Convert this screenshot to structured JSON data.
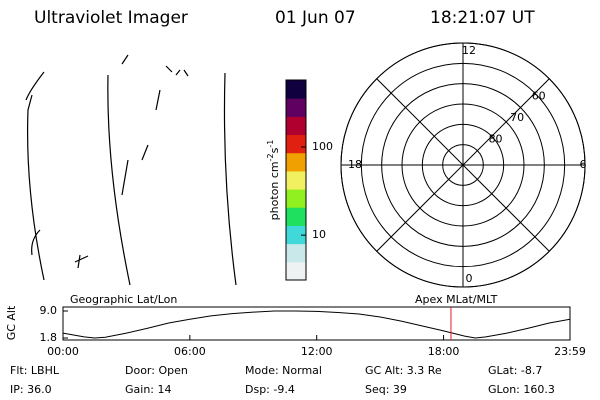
{
  "header": {
    "title": "Ultraviolet Imager",
    "date": "01 Jun 07",
    "time": "18:21:07 UT"
  },
  "colorbar": {
    "label": "photon cm",
    "exp1": "-2",
    "unit2": "s",
    "exp2": "-1",
    "log": true,
    "lim": [
      3.1,
      575
    ],
    "colors": [
      "#eef2f2",
      "#c8e8ea",
      "#40d8d8",
      "#20e060",
      "#90f020",
      "#f0f060",
      "#f0a000",
      "#e02010",
      "#b00030",
      "#600060",
      "#100040"
    ],
    "ticks": [
      100,
      10
    ]
  },
  "polar": {
    "lim": [
      90,
      50
    ],
    "rings": [
      80,
      70,
      60
    ],
    "hours": [
      {
        "value": 12,
        "label": "12"
      },
      {
        "value": 18,
        "label": "18"
      },
      {
        "value": 6,
        "label": "6"
      },
      {
        "value": 0,
        "label": "0"
      }
    ]
  },
  "altitude": {
    "ylabel": "GC Alt",
    "left_label": "Geographic Lat/Lon",
    "right_label": "Apex MLat/MLT",
    "xlim": [
      0,
      23.98
    ],
    "ylim": [
      1.8,
      9.0
    ],
    "yticks": [
      {
        "value": 9.0,
        "label": "9.0"
      },
      {
        "value": 1.8,
        "label": "1.8"
      }
    ],
    "xticks": [
      {
        "value": 0,
        "label": "00:00"
      },
      {
        "value": 6,
        "label": "06:00"
      },
      {
        "value": 12,
        "label": "12:00"
      },
      {
        "value": 18,
        "label": "18:00"
      },
      {
        "value": 23.98,
        "label": "23:59"
      }
    ],
    "x": [
      0,
      1,
      1.5,
      2,
      3,
      4,
      5,
      6,
      7,
      8,
      9,
      10,
      11,
      12,
      13,
      14,
      15,
      16,
      17,
      18,
      19,
      19.5,
      20,
      21,
      22,
      23,
      23.98
    ],
    "values": [
      3.1,
      2.1,
      1.8,
      2.0,
      3.1,
      4.4,
      5.8,
      6.8,
      7.7,
      8.3,
      8.7,
      9.0,
      9.0,
      8.9,
      8.6,
      8.2,
      7.4,
      6.3,
      5.0,
      3.7,
      2.3,
      1.8,
      2.1,
      3.1,
      4.4,
      5.8,
      6.8
    ],
    "marker_x": 18.35,
    "marker_color": "#e02020"
  },
  "info": {
    "rows": [
      [
        "Flt: LBHL",
        "Door: Open",
        "Mode: Normal",
        "GC Alt: 3.3 Re",
        "GLat: -8.7"
      ],
      [
        "IP: 36.0",
        "Gain: 14",
        "Dsp: -9.4",
        "Seq: 39",
        "GLon: 160.3"
      ]
    ]
  }
}
